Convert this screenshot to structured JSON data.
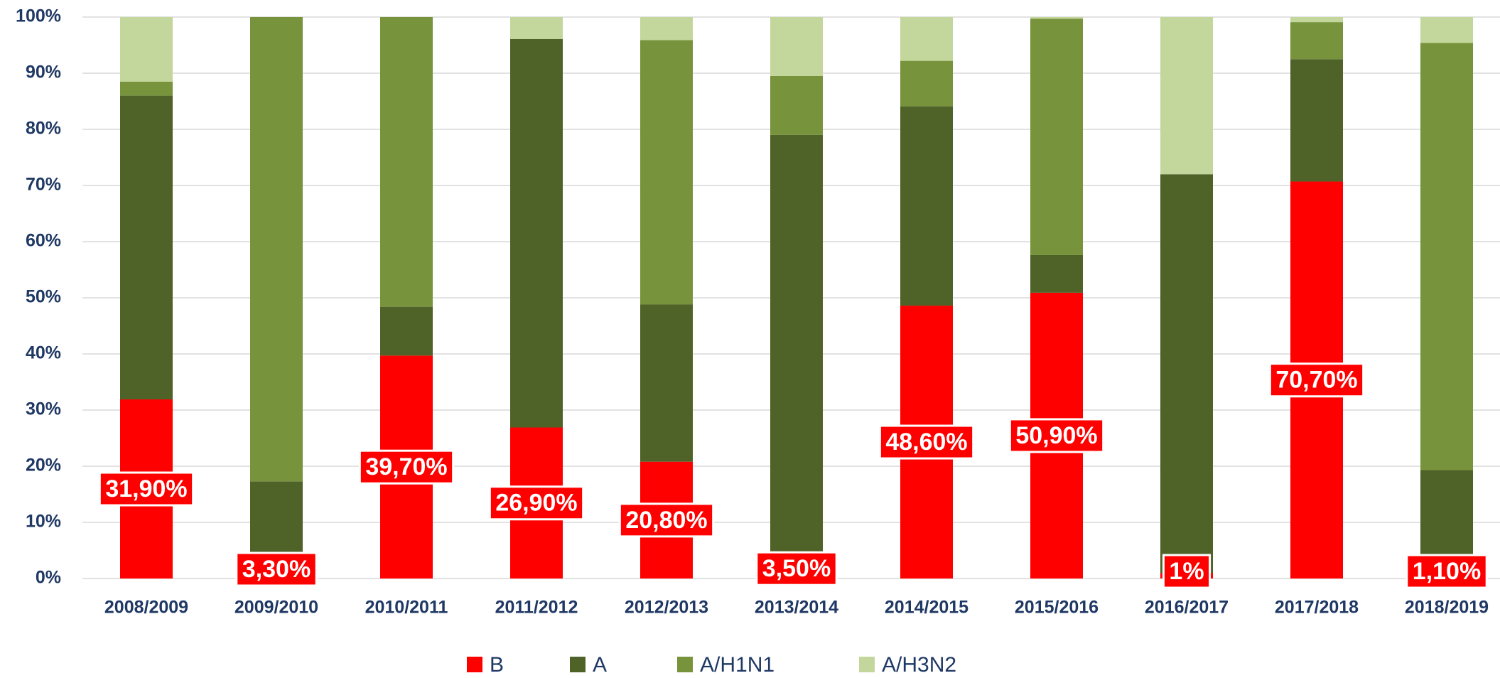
{
  "chart_data": {
    "type": "stacked_bar",
    "categories": [
      "2008/2009",
      "2009/2010",
      "2010/2011",
      "2011/2012",
      "2012/2013",
      "2013/2014",
      "2014/2015",
      "2015/2016",
      "2016/2017",
      "2017/2018",
      "2018/2019"
    ],
    "series": [
      {
        "name": "B",
        "color": "#ff0000",
        "values": [
          31.9,
          3.3,
          39.7,
          26.9,
          20.8,
          3.5,
          48.6,
          50.9,
          1,
          70.7,
          1.1
        ],
        "value_labels": [
          "31,90%",
          "3,30%",
          "39,70%",
          "26,90%",
          "20,80%",
          "3,50%",
          "48,60%",
          "50,90%",
          "1%",
          "70,70%",
          "1,10%"
        ]
      },
      {
        "name": "A",
        "color": "#4f6228",
        "values": [
          54.1,
          14.0,
          8.7,
          69.2,
          28.0,
          75.5,
          35.5,
          6.7,
          71,
          21.8,
          18.2
        ]
      },
      {
        "name": "A/H1N1",
        "color": "#77933c",
        "values": [
          2.5,
          82.7,
          51.6,
          0,
          47.1,
          10.5,
          8.1,
          42.1,
          0,
          6.6,
          76.1
        ]
      },
      {
        "name": "A/H3N2",
        "color": "#c3d69b",
        "values": [
          11.5,
          0,
          0,
          3.9,
          4.1,
          10.5,
          7.8,
          0.3,
          28,
          0.9,
          4.6
        ]
      }
    ],
    "ylim": [
      0,
      100
    ],
    "yticks": [
      {
        "value": 0,
        "label": "0%"
      },
      {
        "value": 10,
        "label": "10%"
      },
      {
        "value": 20,
        "label": "20%"
      },
      {
        "value": 30,
        "label": "30%"
      },
      {
        "value": 40,
        "label": "40%"
      },
      {
        "value": 50,
        "label": "50%"
      },
      {
        "value": 60,
        "label": "60%"
      },
      {
        "value": 70,
        "label": "70%"
      },
      {
        "value": 80,
        "label": "80%"
      },
      {
        "value": 90,
        "label": "90%"
      },
      {
        "value": 100,
        "label": "100%"
      }
    ],
    "grid": true,
    "legend": "bottom"
  }
}
